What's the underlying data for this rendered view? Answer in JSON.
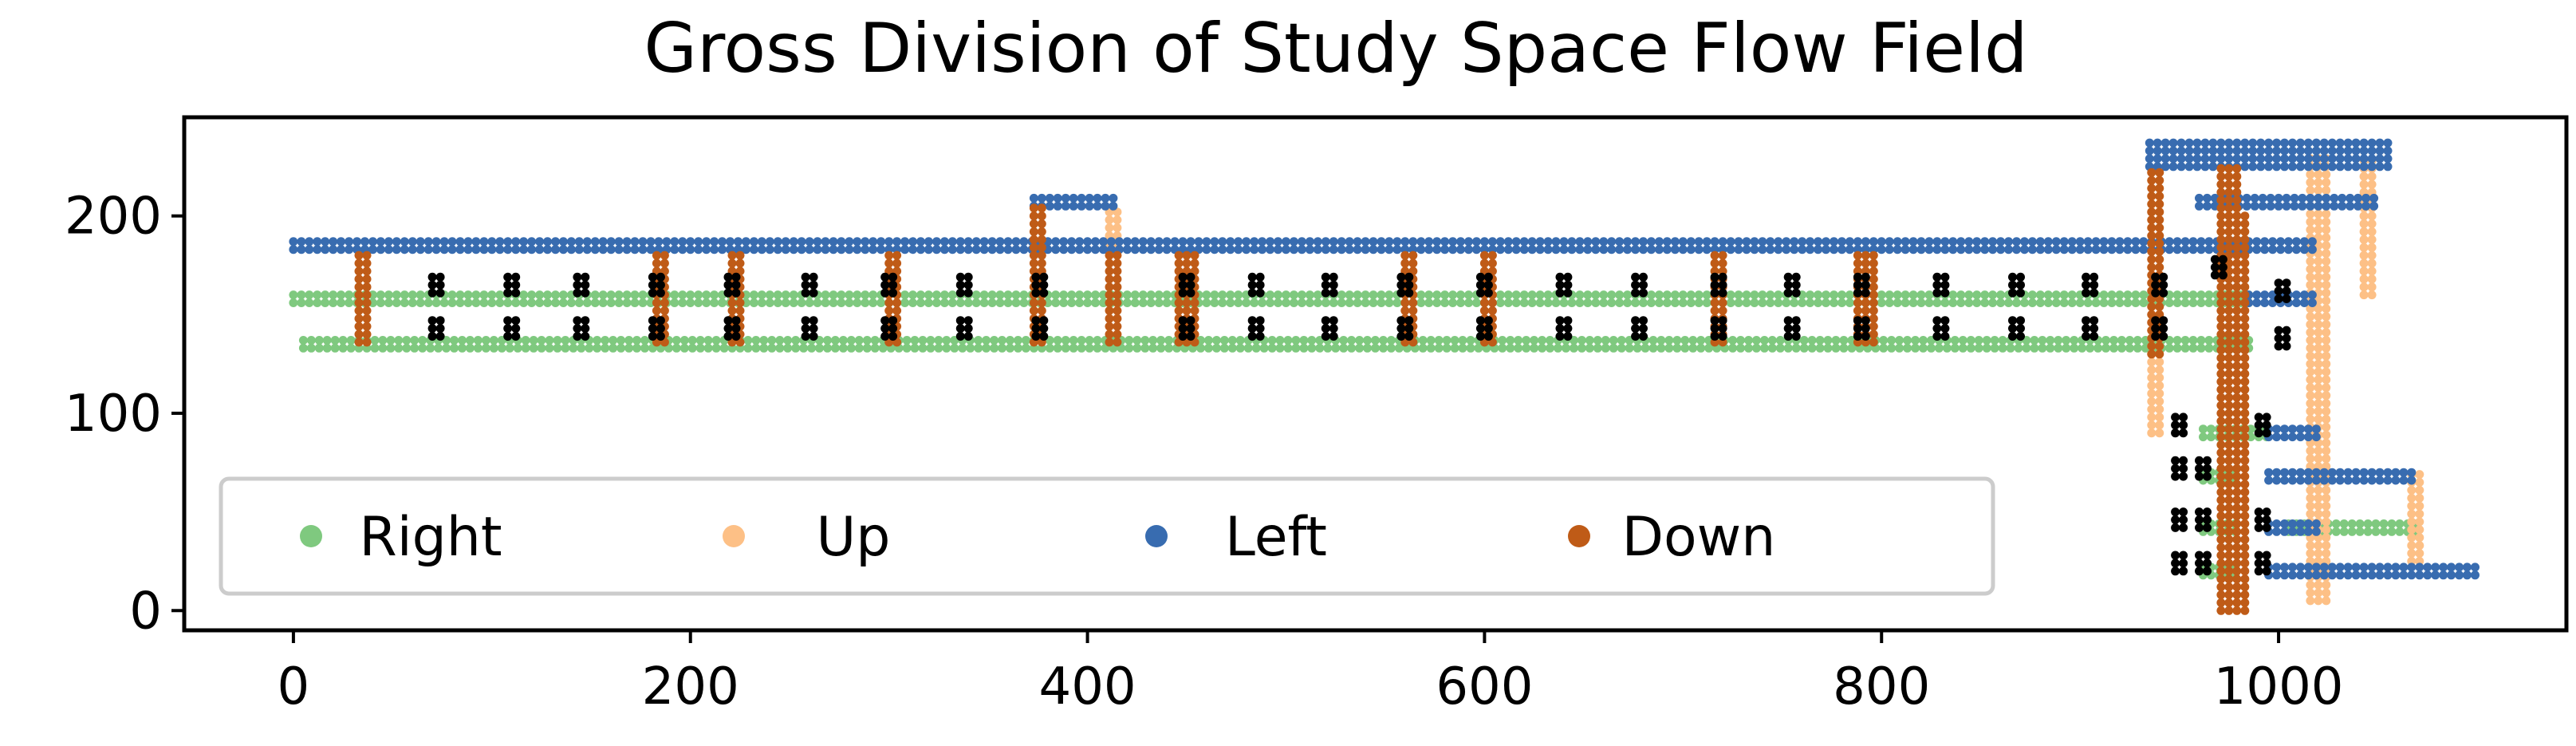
{
  "chart_data": {
    "type": "scatter",
    "title": "Gross Division of Study Space Flow Field",
    "xlabel": "",
    "ylabel": "",
    "xlim": [
      -55,
      1145
    ],
    "ylim": [
      -10,
      250
    ],
    "x_ticks": [
      0,
      200,
      400,
      600,
      800,
      1000
    ],
    "y_ticks": [
      0,
      100,
      200
    ],
    "grid": false,
    "legend": {
      "placement": "lower-left",
      "ncol": 4
    },
    "point_step": 4,
    "series": [
      {
        "name": "Right",
        "color": "#7fc97f",
        "hsegs": [
          [
            0,
            941,
            160
          ],
          [
            0,
            941,
            156
          ],
          [
            5,
            941,
            137
          ],
          [
            5,
            941,
            133
          ],
          [
            941,
            985,
            160
          ],
          [
            941,
            985,
            156
          ],
          [
            941,
            985,
            137
          ],
          [
            941,
            985,
            133
          ],
          [
            962,
            995,
            92
          ],
          [
            962,
            995,
            88
          ],
          [
            962,
            980,
            70
          ],
          [
            962,
            980,
            66
          ],
          [
            962,
            980,
            44
          ],
          [
            962,
            980,
            40
          ],
          [
            962,
            980,
            22
          ],
          [
            962,
            980,
            18
          ],
          [
            1005,
            1070,
            44
          ],
          [
            1005,
            1070,
            40
          ]
        ]
      },
      {
        "name": "Up",
        "color": "#fdc086",
        "hsegs": [],
        "vsegs": [
          [
            411,
            186,
            205
          ],
          [
            415,
            186,
            205
          ],
          [
            936,
            90,
            225
          ],
          [
            940,
            90,
            225
          ],
          [
            1016,
            5,
            230
          ],
          [
            1020,
            5,
            230
          ],
          [
            1024,
            5,
            230
          ],
          [
            1043,
            160,
            230
          ],
          [
            1047,
            160,
            230
          ],
          [
            1067,
            25,
            70
          ],
          [
            1071,
            25,
            70
          ]
        ]
      },
      {
        "name": "Left",
        "color": "#386cb0",
        "hsegs": [
          [
            0,
            941,
            187
          ],
          [
            0,
            941,
            183
          ],
          [
            373,
            415,
            209
          ],
          [
            373,
            415,
            205
          ],
          [
            941,
            1020,
            187
          ],
          [
            941,
            1020,
            183
          ],
          [
            935,
            1055,
            237
          ],
          [
            935,
            1055,
            233
          ],
          [
            935,
            1055,
            229
          ],
          [
            935,
            1055,
            225
          ],
          [
            960,
            1050,
            209
          ],
          [
            960,
            1050,
            205
          ],
          [
            985,
            1020,
            160
          ],
          [
            985,
            1020,
            156
          ],
          [
            995,
            1070,
            70
          ],
          [
            995,
            1070,
            66
          ],
          [
            995,
            1022,
            92
          ],
          [
            995,
            1022,
            88
          ],
          [
            995,
            1020,
            44
          ],
          [
            995,
            1020,
            40
          ],
          [
            995,
            1100,
            22
          ],
          [
            995,
            1100,
            18
          ]
        ]
      },
      {
        "name": "Down",
        "color": "#bf5b17",
        "hsegs": [],
        "vsegs": [
          [
            33,
            136,
            183
          ],
          [
            37,
            136,
            183
          ],
          [
            183,
            136,
            183
          ],
          [
            187,
            136,
            183
          ],
          [
            221,
            136,
            183
          ],
          [
            225,
            136,
            183
          ],
          [
            300,
            136,
            183
          ],
          [
            304,
            136,
            183
          ],
          [
            373,
            136,
            207
          ],
          [
            377,
            136,
            207
          ],
          [
            411,
            136,
            183
          ],
          [
            415,
            136,
            183
          ],
          [
            446,
            136,
            183
          ],
          [
            450,
            136,
            183
          ],
          [
            454,
            136,
            183
          ],
          [
            560,
            136,
            183
          ],
          [
            564,
            136,
            183
          ],
          [
            600,
            136,
            183
          ],
          [
            604,
            136,
            183
          ],
          [
            716,
            136,
            183
          ],
          [
            720,
            136,
            183
          ],
          [
            788,
            136,
            183
          ],
          [
            792,
            136,
            183
          ],
          [
            796,
            136,
            183
          ],
          [
            936,
            130,
            225
          ],
          [
            940,
            130,
            225
          ],
          [
            971,
            0,
            225
          ],
          [
            975,
            0,
            225
          ],
          [
            979,
            0,
            225
          ],
          [
            983,
            0,
            200
          ]
        ]
      },
      {
        "name": "",
        "color": "#000000",
        "clusters": [
          [
            72,
            141
          ],
          [
            72,
            163
          ],
          [
            110,
            141
          ],
          [
            110,
            163
          ],
          [
            145,
            141
          ],
          [
            145,
            163
          ],
          [
            183,
            141
          ],
          [
            183,
            163
          ],
          [
            221,
            141
          ],
          [
            221,
            163
          ],
          [
            260,
            141
          ],
          [
            260,
            163
          ],
          [
            300,
            141
          ],
          [
            300,
            163
          ],
          [
            338,
            141
          ],
          [
            338,
            163
          ],
          [
            376,
            141
          ],
          [
            376,
            163
          ],
          [
            450,
            141
          ],
          [
            450,
            163
          ],
          [
            485,
            141
          ],
          [
            485,
            163
          ],
          [
            522,
            141
          ],
          [
            522,
            163
          ],
          [
            560,
            141
          ],
          [
            560,
            163
          ],
          [
            600,
            141
          ],
          [
            600,
            163
          ],
          [
            640,
            141
          ],
          [
            640,
            163
          ],
          [
            678,
            141
          ],
          [
            678,
            163
          ],
          [
            718,
            141
          ],
          [
            718,
            163
          ],
          [
            755,
            141
          ],
          [
            755,
            163
          ],
          [
            790,
            141
          ],
          [
            790,
            163
          ],
          [
            830,
            141
          ],
          [
            830,
            163
          ],
          [
            868,
            141
          ],
          [
            868,
            163
          ],
          [
            905,
            141
          ],
          [
            905,
            163
          ],
          [
            940,
            141
          ],
          [
            940,
            163
          ],
          [
            970,
            172
          ],
          [
            1002,
            160
          ],
          [
            1002,
            136
          ],
          [
            950,
            92
          ],
          [
            992,
            92
          ],
          [
            950,
            70
          ],
          [
            962,
            70
          ],
          [
            950,
            44
          ],
          [
            962,
            44
          ],
          [
            992,
            44
          ],
          [
            950,
            22
          ],
          [
            962,
            22
          ],
          [
            992,
            22
          ]
        ]
      }
    ]
  }
}
